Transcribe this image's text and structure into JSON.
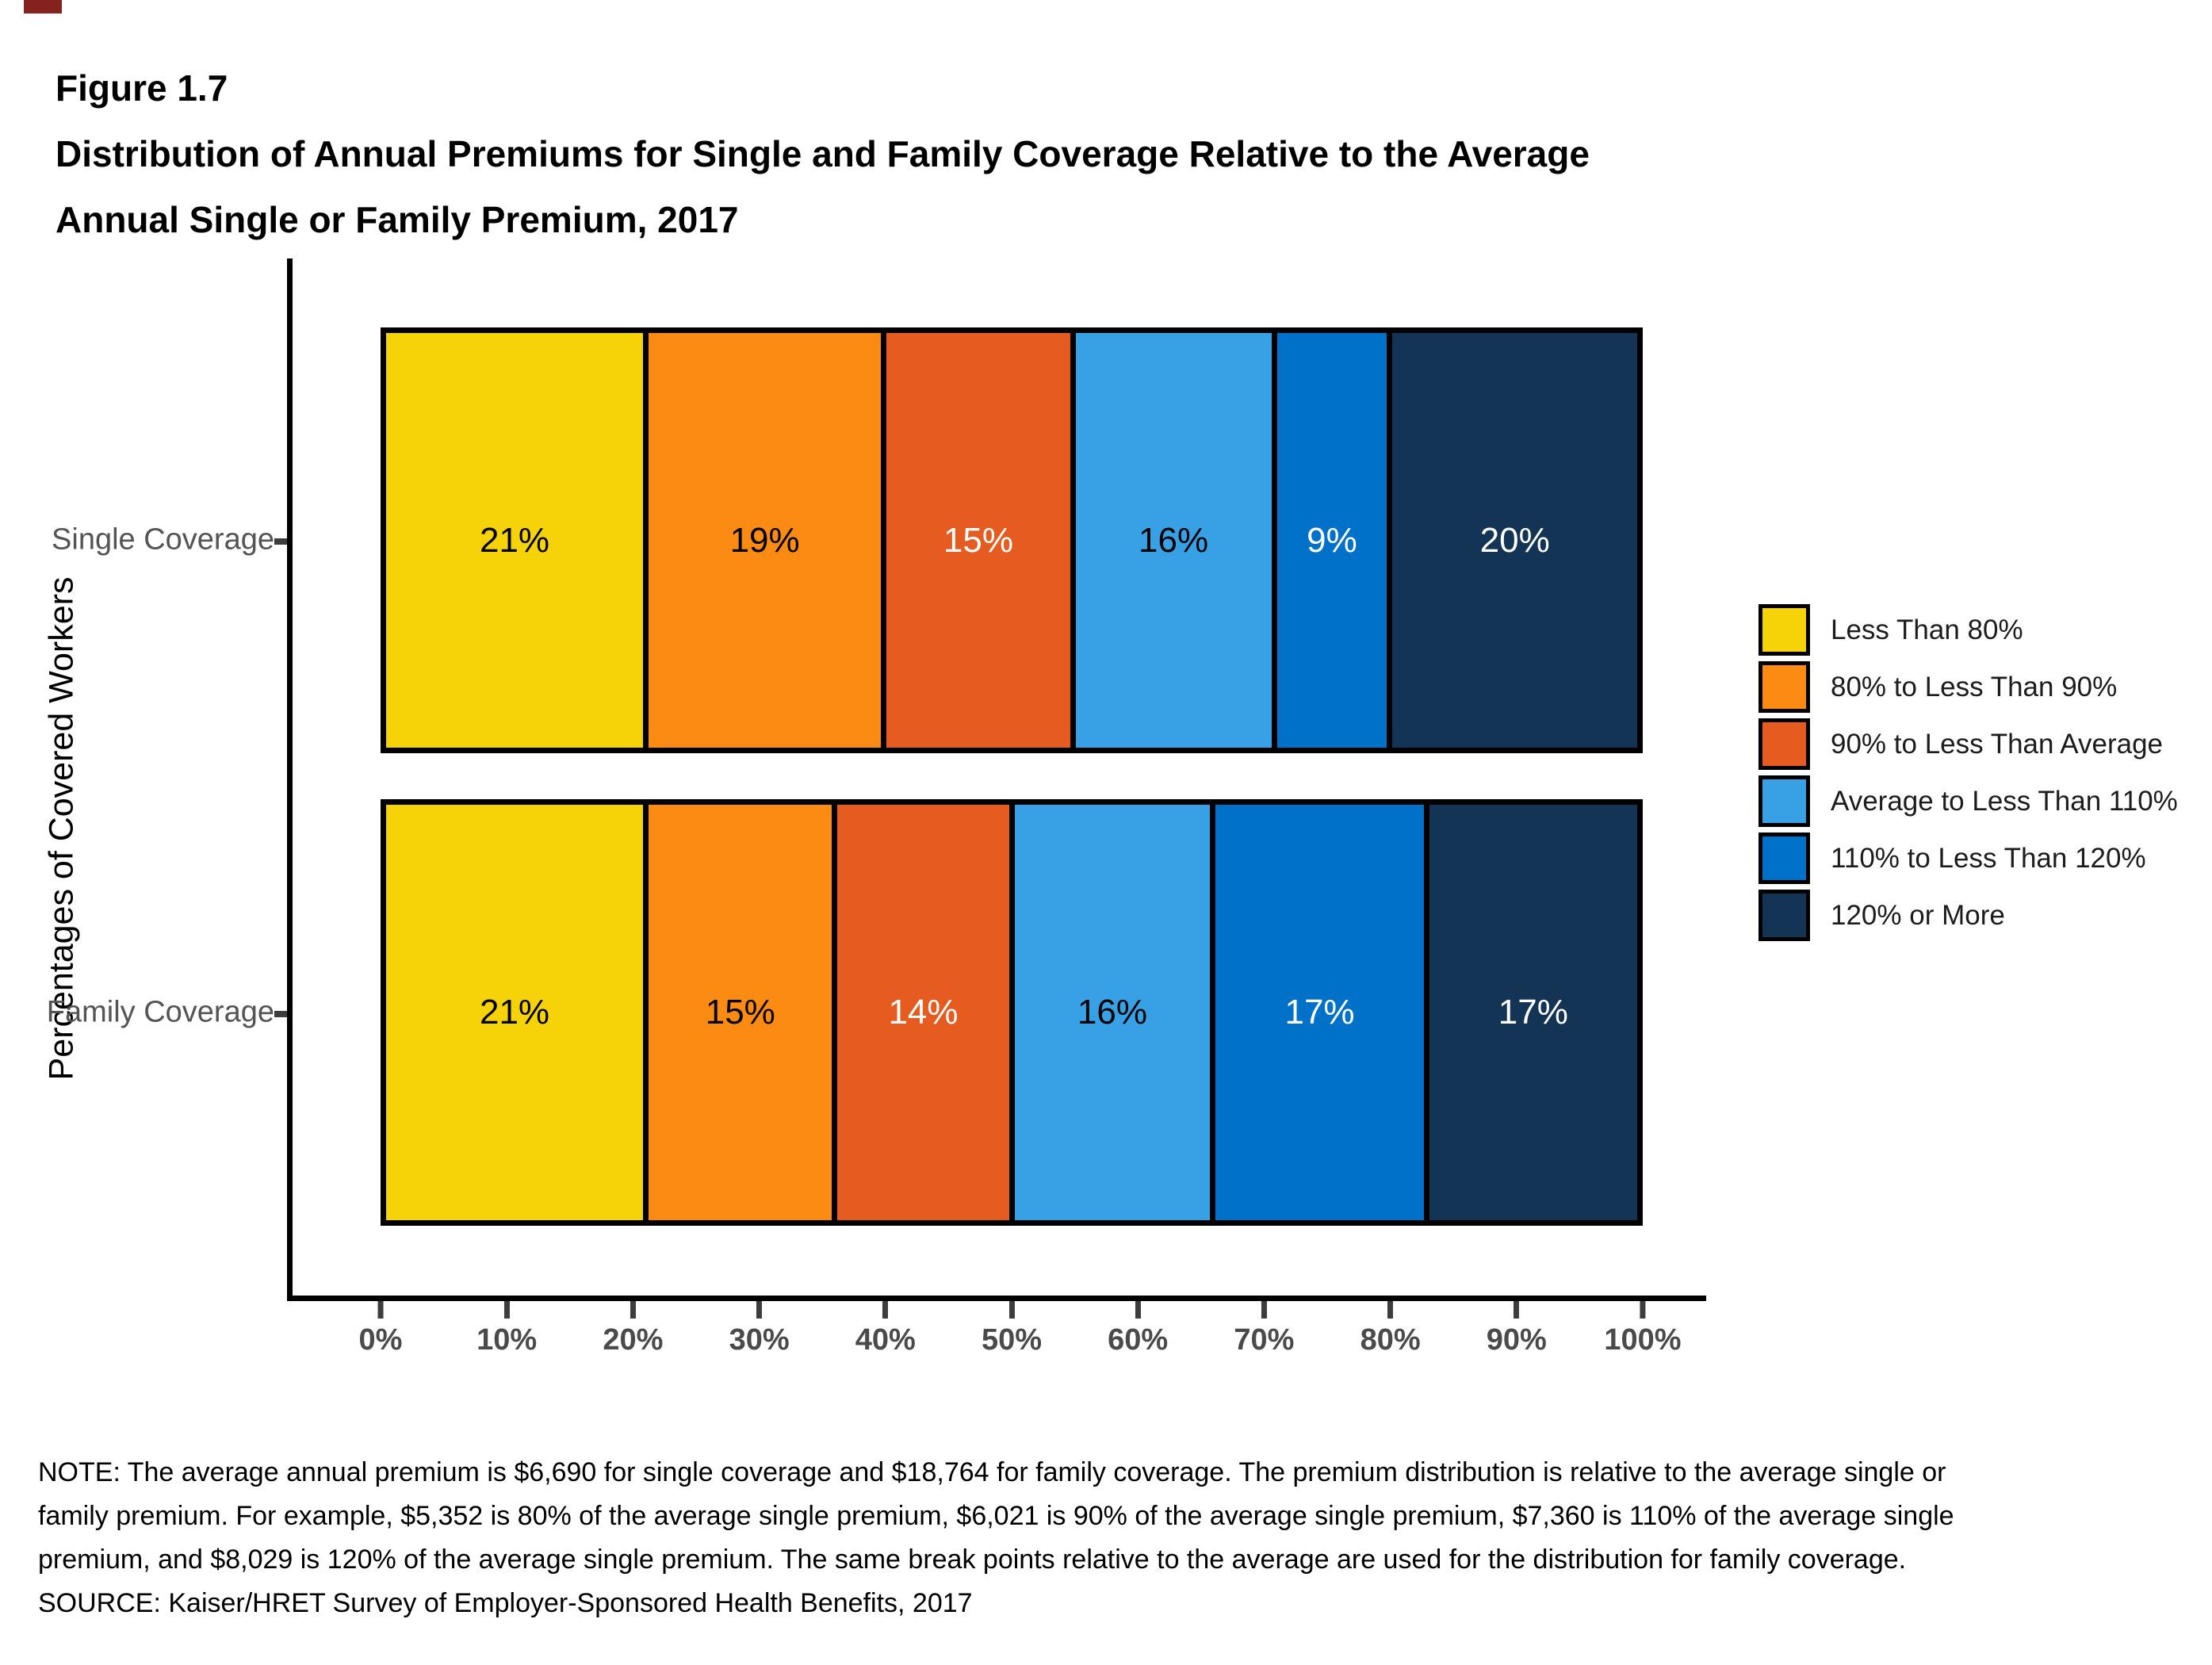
{
  "header": {
    "figure_label": "Figure 1.7",
    "title_line1": "Distribution of Annual Premiums for Single and Family Coverage Relative to the Average",
    "title_line2": "Annual Single or Family Premium, 2017"
  },
  "decor": {
    "corner_mark_color": "#84231E"
  },
  "chart_data": {
    "type": "bar",
    "orientation": "horizontal",
    "stacked": true,
    "title": "Distribution of Annual Premiums for Single and Family Coverage Relative to the Average Annual Single or Family Premium, 2017",
    "ylabel": "Percentages of Covered Workers",
    "xlabel": "",
    "categories": [
      "Single Coverage",
      "Family Coverage"
    ],
    "x_tick_labels": [
      "0%",
      "10%",
      "20%",
      "30%",
      "40%",
      "50%",
      "60%",
      "70%",
      "80%",
      "90%",
      "100%"
    ],
    "xlim": [
      0,
      100
    ],
    "grid": false,
    "legend_position": "right",
    "value_suffix": "%",
    "axis_color": "#000000",
    "tick_label_color": "#4a4a4a",
    "category_label_color": "#545454",
    "legend": [
      {
        "label": "Less Than 80%",
        "color": "#F5D308",
        "value_text_color": "#000000"
      },
      {
        "label": "80% to Less Than 90%",
        "color": "#FB8B12",
        "value_text_color": "#000000"
      },
      {
        "label": "90% to Less Than Average",
        "color": "#E55B20",
        "value_text_color": "#FFFFFF"
      },
      {
        "label": "Average to Less Than 110%",
        "color": "#38A1E6",
        "value_text_color": "#000000"
      },
      {
        "label": "110% to Less Than 120%",
        "color": "#0071C8",
        "value_text_color": "#FFFFFF"
      },
      {
        "label": "120% or More",
        "color": "#143456",
        "value_text_color": "#FFFFFF"
      }
    ],
    "series": [
      {
        "name": "Single Coverage",
        "values": [
          21,
          19,
          15,
          16,
          9,
          20
        ]
      },
      {
        "name": "Family Coverage",
        "values": [
          21,
          15,
          14,
          16,
          17,
          17
        ]
      }
    ]
  },
  "footer": {
    "note": "NOTE: The average annual premium is $6,690 for single coverage and $18,764 for family coverage. The premium distribution is relative to the average single or family premium. For example, $5,352 is 80% of the average single premium, $6,021 is 90% of the average single premium, $7,360 is 110% of the average single premium, and $8,029 is 120% of the average single premium. The same break points relative to the average are used for the distribution for family coverage.",
    "source": "SOURCE: Kaiser/HRET Survey of Employer-Sponsored Health Benefits, 2017"
  }
}
